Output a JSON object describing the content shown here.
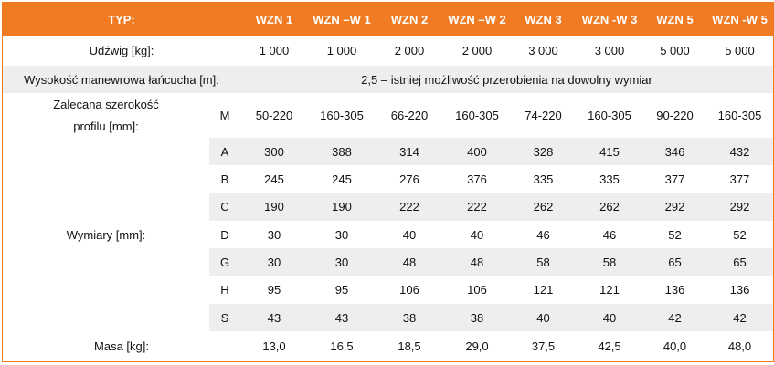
{
  "header": {
    "typ": "TYP:",
    "models": [
      "WZN 1",
      "WZN –W 1",
      "WZN 2",
      "WZN –W 2",
      "WZN 3",
      "WZN -W 3",
      "WZN 5",
      "WZN -W 5"
    ]
  },
  "udzwig": {
    "label": "Udźwig [kg]:",
    "values": [
      "1 000",
      "1 000",
      "2 000",
      "2 000",
      "3 000",
      "3 000",
      "5 000",
      "5 000"
    ]
  },
  "wysokosc": {
    "label": "Wysokość manewrowa łańcucha [m]:",
    "value": "2,5 – istniej możliwość przerobienia na dowolny wymiar"
  },
  "zalecana": {
    "label_line1": "Zalecana szerokość",
    "label_line2": "profilu [mm]:",
    "code": "M",
    "values": [
      "50-220",
      "160-305",
      "66-220",
      "160-305",
      "74-220",
      "160-305",
      "90-220",
      "160-305"
    ]
  },
  "wymiary": {
    "label": "Wymiary [mm]:",
    "rows": [
      {
        "code": "A",
        "values": [
          "300",
          "388",
          "314",
          "400",
          "328",
          "415",
          "346",
          "432"
        ]
      },
      {
        "code": "B",
        "values": [
          "245",
          "245",
          "276",
          "376",
          "335",
          "335",
          "377",
          "377"
        ]
      },
      {
        "code": "C",
        "values": [
          "190",
          "190",
          "222",
          "222",
          "262",
          "262",
          "292",
          "292"
        ]
      },
      {
        "code": "D",
        "values": [
          "30",
          "30",
          "40",
          "40",
          "46",
          "46",
          "52",
          "52"
        ]
      },
      {
        "code": "G",
        "values": [
          "30",
          "30",
          "48",
          "48",
          "58",
          "58",
          "65",
          "65"
        ]
      },
      {
        "code": "H",
        "values": [
          "95",
          "95",
          "106",
          "106",
          "121",
          "121",
          "136",
          "136"
        ]
      },
      {
        "code": "S",
        "values": [
          "43",
          "43",
          "38",
          "38",
          "40",
          "40",
          "42",
          "42"
        ]
      }
    ]
  },
  "masa": {
    "label": "Masa [kg]:",
    "values": [
      "13,0",
      "16,5",
      "18,5",
      "29,0",
      "37,5",
      "42,5",
      "40,0",
      "48,0"
    ]
  },
  "colors": {
    "header_bg": "#f07b23",
    "header_text": "#ffffff",
    "stripe": "#eeeeee"
  }
}
